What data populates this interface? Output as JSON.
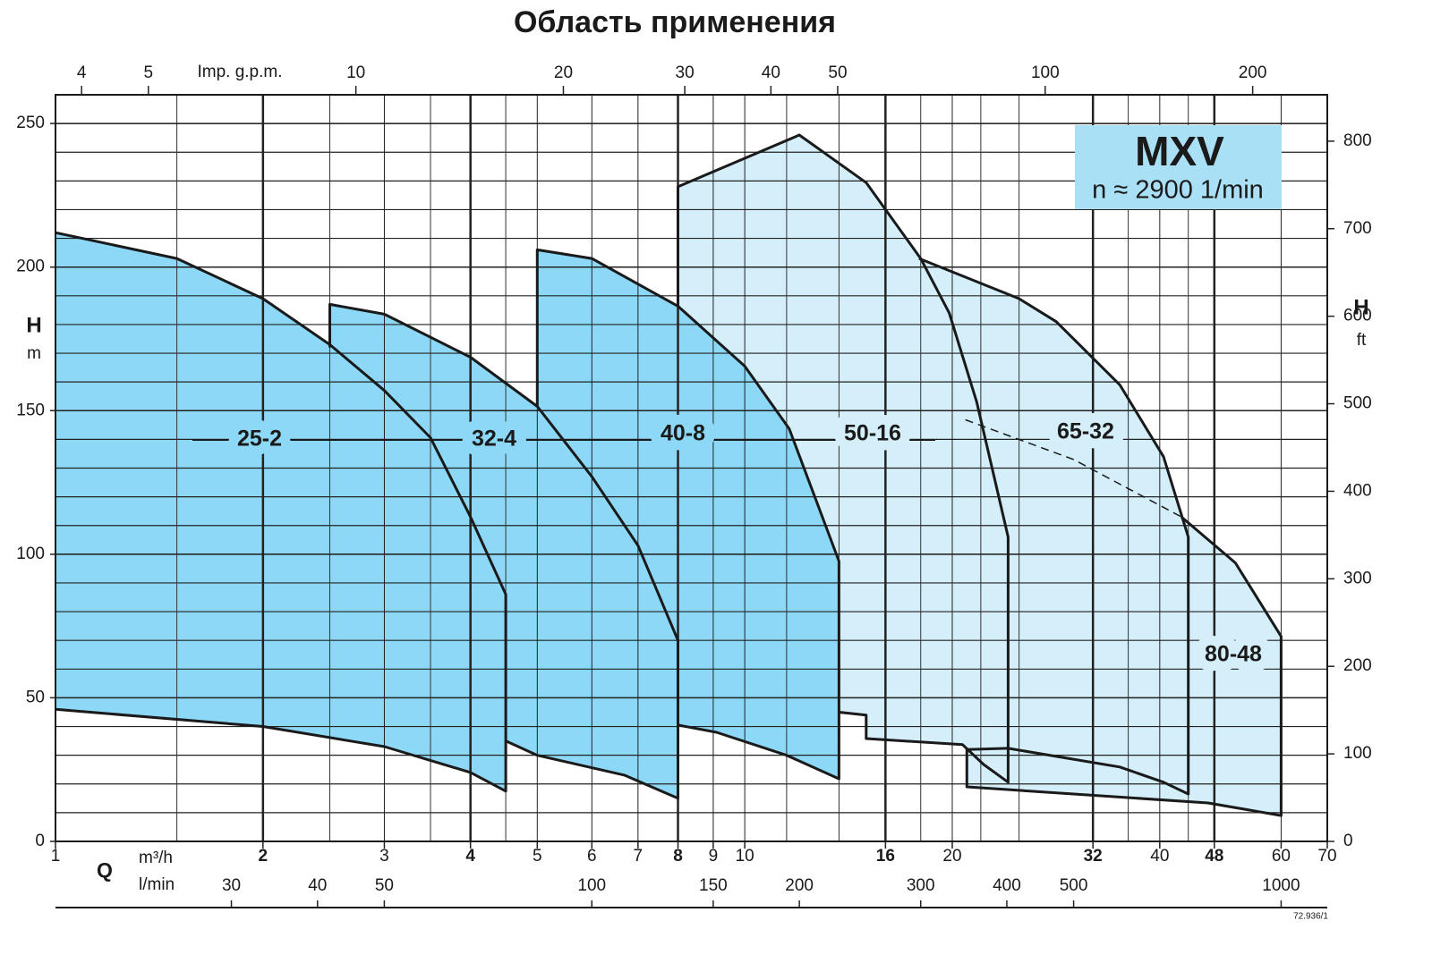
{
  "chart_data": {
    "type": "area",
    "title": "Область применения",
    "x_label": "Q",
    "x_unit": "m³/h",
    "x2_unit": "l/min",
    "x3_unit": "Imp. g.p.m.",
    "y_label": "H",
    "y_unit": "m",
    "y2_label": "H",
    "y2_unit": "ft",
    "log_x": true,
    "xlim": [
      1,
      70
    ],
    "xticks": [
      1,
      2,
      3,
      4,
      5,
      6,
      7,
      8,
      9,
      10,
      16,
      20,
      32,
      40,
      48,
      60,
      70
    ],
    "bold_xticks": [
      2,
      4,
      8,
      16,
      32,
      48
    ],
    "x_minor_grid": [
      1.5,
      2.5,
      3.5,
      4.5,
      11.5,
      13.7,
      18,
      22,
      25,
      36,
      44
    ],
    "x2lim": [
      16.67,
      1166.67
    ],
    "x2ticks": [
      30,
      40,
      50,
      100,
      150,
      200,
      300,
      400,
      500,
      1000
    ],
    "x3lim": [
      3.666,
      256.6
    ],
    "x3ticks": [
      4,
      5,
      10,
      20,
      30,
      40,
      50,
      100,
      200
    ],
    "ylim": [
      0,
      260
    ],
    "yticks": [
      0,
      50,
      100,
      150,
      200,
      250
    ],
    "ygrid_step": 10,
    "y2lim": [
      0,
      853
    ],
    "y2ticks": [
      0,
      100,
      200,
      300,
      400,
      500,
      600,
      700,
      800
    ],
    "series": [
      {
        "name": "25-2",
        "color": "#8dd8f6",
        "x": [
          1,
          1.5,
          2,
          2.5,
          3,
          3.5,
          4,
          4.5,
          4.5,
          4,
          3,
          2,
          1
        ],
        "values": [
          212,
          203,
          189,
          173,
          157,
          140.6,
          113,
          86,
          17.5,
          24,
          33,
          40,
          46
        ]
      },
      {
        "name": "32-4",
        "color": "#8dd8f6",
        "x": [
          2.5,
          2.5,
          3,
          4,
          5,
          6,
          7,
          8,
          8,
          6.7,
          5,
          4.5
        ],
        "values": [
          172,
          187,
          183.6,
          168.6,
          151.5,
          127,
          103,
          70,
          15,
          23,
          30,
          35
        ]
      },
      {
        "name": "40-8",
        "color": "#8dd8f6",
        "x": [
          5,
          5,
          6,
          8,
          10,
          11.6,
          13.7,
          13.7,
          11.5,
          9.1,
          8
        ],
        "values": [
          151.5,
          206,
          203,
          186.4,
          165.5,
          143.7,
          97.6,
          21.8,
          30,
          38,
          40.5
        ]
      },
      {
        "name": "50-16",
        "color": "#d4effa",
        "x": [
          8,
          8,
          12,
          15,
          18,
          19.8,
          21.7,
          24.1,
          24.1,
          22.2,
          20.7,
          15,
          15,
          13.7
        ],
        "values": [
          186.4,
          228,
          246,
          229.4,
          203,
          184,
          153,
          106,
          20.6,
          26.8,
          33.7,
          35.8,
          44,
          45
        ]
      },
      {
        "name": "65-32",
        "color": "#d4effa",
        "x": [
          17.9,
          25,
          28.3,
          35,
          40.5,
          44,
          44,
          40.5,
          35,
          24.1
        ],
        "values": [
          203,
          189,
          181,
          159,
          134,
          106,
          16.5,
          20.6,
          25.9,
          32.4
        ]
      },
      {
        "name": "80-48",
        "color": "#d4effa",
        "x": [
          43,
          51.5,
          60,
          60,
          47,
          30,
          21,
          21,
          24.1
        ],
        "values": [
          113,
          97,
          71.4,
          9,
          13.4,
          16.5,
          19,
          32,
          32.4
        ]
      }
    ],
    "dashed_line": {
      "x": [
        20.9,
        30,
        43
      ],
      "values": [
        146.8,
        133,
        113
      ]
    },
    "box": {
      "title": "MXV",
      "subtitle": "n ≈ 2900 1/min",
      "color": "#a9e0f5"
    },
    "footnote": "72.936/1"
  }
}
